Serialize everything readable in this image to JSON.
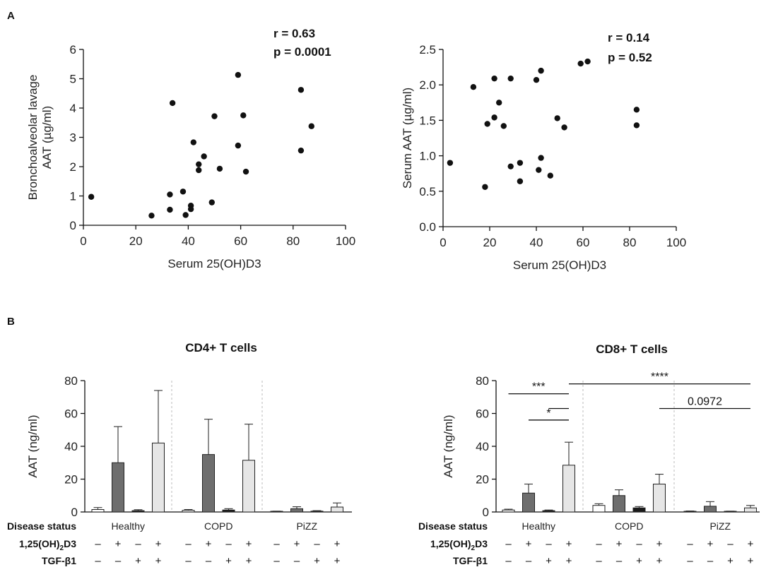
{
  "panel_a_label": "A",
  "panel_b_label": "B",
  "chart_data": [
    {
      "id": "scatterA1",
      "type": "scatter",
      "xlabel": "Serum 25(OH)D3",
      "ylabel_lines": [
        "Bronchoalveolar lavage",
        "AAT (µg/ml)"
      ],
      "xlim": [
        0,
        100
      ],
      "ylim": [
        0,
        6
      ],
      "xticks": [
        0,
        20,
        40,
        60,
        80,
        100
      ],
      "yticks": [
        0,
        1,
        2,
        3,
        4,
        5,
        6
      ],
      "ytick_labels": [
        "0",
        "1",
        "2",
        "3",
        "4",
        "5",
        "6"
      ],
      "stats": [
        "r = 0.63",
        "p = 0.0001"
      ],
      "points": [
        [
          3,
          0.97
        ],
        [
          26,
          0.33
        ],
        [
          33,
          1.05
        ],
        [
          33,
          0.53
        ],
        [
          34,
          4.17
        ],
        [
          38,
          1.15
        ],
        [
          39,
          0.35
        ],
        [
          41,
          0.67
        ],
        [
          41,
          0.55
        ],
        [
          42,
          2.83
        ],
        [
          44,
          2.08
        ],
        [
          44,
          1.88
        ],
        [
          46,
          2.35
        ],
        [
          49,
          0.78
        ],
        [
          50,
          3.72
        ],
        [
          52,
          1.93
        ],
        [
          59,
          5.13
        ],
        [
          59,
          2.72
        ],
        [
          61,
          3.75
        ],
        [
          62,
          1.83
        ],
        [
          83,
          4.62
        ],
        [
          83,
          2.55
        ],
        [
          87,
          3.38
        ]
      ]
    },
    {
      "id": "scatterA2",
      "type": "scatter",
      "xlabel": "Serum 25(OH)D3",
      "ylabel_lines": [
        "Serum AAT (µg/ml)"
      ],
      "xlim": [
        0,
        100
      ],
      "ylim": [
        0,
        2.5
      ],
      "xticks": [
        0,
        20,
        40,
        60,
        80,
        100
      ],
      "yticks": [
        0,
        0.5,
        1,
        1.5,
        2,
        2.5
      ],
      "ytick_labels": [
        "0.0",
        "0.5",
        "1.0",
        "1.5",
        "2.0",
        "2.5"
      ],
      "stats": [
        "r = 0.14",
        "p = 0.52"
      ],
      "points": [
        [
          3,
          0.9
        ],
        [
          13,
          1.97
        ],
        [
          18,
          0.56
        ],
        [
          19,
          1.45
        ],
        [
          22,
          2.09
        ],
        [
          22,
          1.54
        ],
        [
          24,
          1.75
        ],
        [
          26,
          1.42
        ],
        [
          29,
          2.09
        ],
        [
          29,
          0.85
        ],
        [
          33,
          0.9
        ],
        [
          33,
          0.64
        ],
        [
          40,
          2.07
        ],
        [
          41,
          0.8
        ],
        [
          42,
          2.2
        ],
        [
          42,
          0.97
        ],
        [
          46,
          0.72
        ],
        [
          49,
          1.53
        ],
        [
          52,
          1.4
        ],
        [
          59,
          2.3
        ],
        [
          62,
          2.33
        ],
        [
          83,
          1.65
        ],
        [
          83,
          1.43
        ]
      ]
    },
    {
      "id": "barB1",
      "type": "bar",
      "title": "CD4+ T cells",
      "ylabel": "AAT (ng/ml)",
      "ylim": [
        0,
        80
      ],
      "yticks": [
        0,
        20,
        40,
        60,
        80
      ],
      "groups": [
        "Healthy",
        "COPD",
        "PiZZ"
      ],
      "conditions": [
        "untreated",
        "1,25(OH)2D3",
        "TGF-β1",
        "1,25(OH)2D3 + TGF-β1"
      ],
      "colors": [
        "#ffffff",
        "#6e6e6e",
        "#1a1a1a",
        "#e6e6e6"
      ],
      "values": [
        [
          1.5,
          30,
          0.8,
          42
        ],
        [
          1,
          35,
          1.2,
          31.5
        ],
        [
          0.3,
          2,
          0.5,
          3
        ]
      ],
      "errors": [
        [
          1.2,
          22,
          0.6,
          32
        ],
        [
          0.5,
          21.5,
          0.8,
          22
        ],
        [
          0.2,
          1.2,
          0.3,
          2.5
        ]
      ],
      "significance": []
    },
    {
      "id": "barB2",
      "type": "bar",
      "title": "CD8+ T cells",
      "ylabel": "AAT (ng/ml)",
      "ylim": [
        0,
        80
      ],
      "yticks": [
        0,
        20,
        40,
        60,
        80
      ],
      "groups": [
        "Healthy",
        "COPD",
        "PiZZ"
      ],
      "conditions": [
        "untreated",
        "1,25(OH)2D3",
        "TGF-β1",
        "1,25(OH)2D3 + TGF-β1"
      ],
      "colors": [
        "#ffffff",
        "#6e6e6e",
        "#1a1a1a",
        "#e6e6e6"
      ],
      "values": [
        [
          1.2,
          11.5,
          0.8,
          28.5
        ],
        [
          4,
          10,
          2.5,
          17
        ],
        [
          0.4,
          3.5,
          0.3,
          2.5
        ]
      ],
      "errors": [
        [
          0.5,
          5.5,
          0.4,
          14
        ],
        [
          1,
          3.5,
          0.8,
          6
        ],
        [
          0.2,
          2.8,
          0.2,
          1.5
        ]
      ],
      "significance": [
        {
          "label": "***",
          "from": [
            0,
            0
          ],
          "to": [
            0,
            3
          ],
          "y": 72
        },
        {
          "label": "****",
          "from": [
            0,
            3
          ],
          "to": [
            2,
            3
          ],
          "y": 78
        },
        {
          "label": "",
          "from": [
            0,
            2
          ],
          "to": [
            0,
            3
          ],
          "y": 63
        },
        {
          "label": "*",
          "from": [
            0,
            1
          ],
          "to": [
            0,
            3
          ],
          "y": 56
        },
        {
          "label": "0.0972",
          "from": [
            1,
            3
          ],
          "to": [
            2,
            3
          ],
          "y": 63
        }
      ]
    }
  ],
  "treatment_table": {
    "row_labels": {
      "disease": "Disease status",
      "vitd_prefix": "1,25(OH)",
      "vitd_sub": "2",
      "vitd_suffix": "D3",
      "tgf": "TGF-β1"
    },
    "vitd_signs": [
      "–",
      "+",
      "–",
      "+"
    ],
    "tgf_signs": [
      "–",
      "–",
      "+",
      "+"
    ]
  }
}
